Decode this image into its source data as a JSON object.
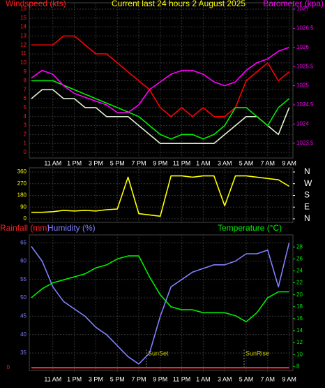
{
  "chart_data": [
    {
      "type": "line",
      "title": "Current last 24 hours 2 August 2025",
      "ylabel": "Windspeed (kts)",
      "y2label": "Barometer (kpa)",
      "categories": [
        null,
        null,
        "11 AM",
        null,
        "1 PM",
        null,
        "3 PM",
        null,
        "5 PM",
        null,
        "7 PM",
        null,
        "9 PM",
        null,
        "11 PM",
        null,
        "1 AM",
        null,
        "3 AM",
        null,
        "5 AM",
        null,
        "7 AM",
        null,
        "9 AM"
      ],
      "ylim": [
        0,
        16
      ],
      "yticks": [
        0,
        1,
        2,
        3,
        4,
        5,
        6,
        7,
        8,
        9,
        10,
        11,
        12,
        13,
        14,
        15,
        16
      ],
      "y2lim": [
        1023.26,
        1027
      ],
      "y2ticks": [
        1023.5,
        1024,
        1024.5,
        1025,
        1025.5,
        1026,
        1026.5,
        1027
      ],
      "ytick_color": "#ff2020",
      "y2tick_color": "#ff00ff",
      "grid": true,
      "series": [
        {
          "color": "#ff0000",
          "values": [
            12,
            12,
            12,
            13,
            13,
            12,
            11,
            11,
            10,
            9,
            8,
            7,
            5,
            4,
            5,
            4,
            5,
            4,
            4,
            5,
            8,
            9,
            10,
            8,
            9
          ]
        },
        {
          "color": "#e0f0d0",
          "values": [
            6,
            7,
            7,
            6,
            6,
            5,
            5,
            4,
            4,
            4,
            3,
            2,
            1,
            1,
            1,
            1,
            1,
            1,
            2,
            3,
            4,
            4,
            3,
            2,
            5
          ]
        },
        {
          "color": "#00ee00",
          "values": [
            8,
            8,
            8,
            7.5,
            7,
            6.5,
            6,
            5.5,
            5,
            4.5,
            4,
            3,
            2,
            1.5,
            2,
            2,
            1.5,
            2,
            3,
            5,
            5,
            4,
            3,
            5,
            6
          ]
        },
        {
          "color": "#ff00ff",
          "axis": "y2",
          "values": [
            1025.2,
            1025.4,
            1025.3,
            1025.0,
            1024.8,
            1024.7,
            1024.6,
            1024.5,
            1024.3,
            1024.3,
            1024.5,
            1024.9,
            1025.1,
            1025.3,
            1025.4,
            1025.4,
            1025.3,
            1025.1,
            1025.0,
            1025.1,
            1025.4,
            1025.6,
            1025.7,
            1025.9,
            1026.0
          ]
        }
      ]
    },
    {
      "type": "line",
      "categories": [
        null,
        null,
        "11 AM",
        null,
        "1 PM",
        null,
        "3 PM",
        null,
        "5 PM",
        null,
        "7 PM",
        null,
        "9 PM",
        null,
        "11 PM",
        null,
        "1 AM",
        null,
        "3 AM",
        null,
        "5 AM",
        null,
        "7 AM",
        null,
        "9 AM"
      ],
      "ylim": [
        0,
        360
      ],
      "yticks": [
        0,
        90,
        180,
        270,
        360
      ],
      "y2lim": [
        0,
        360
      ],
      "y2ticks": [
        {
          "value": 0,
          "label": "N"
        },
        {
          "value": 90,
          "label": "E"
        },
        {
          "value": 180,
          "label": "S"
        },
        {
          "value": 270,
          "label": "W"
        },
        {
          "value": 360,
          "label": "N"
        }
      ],
      "ytick_color": "#ffff00",
      "y2tick_color": "#ffffff",
      "grid": true,
      "series": [
        {
          "color": "#ffff00",
          "values": [
            50,
            50,
            55,
            65,
            60,
            65,
            60,
            70,
            75,
            320,
            40,
            30,
            20,
            330,
            330,
            320,
            330,
            330,
            100,
            330,
            330,
            320,
            310,
            300,
            250
          ]
        }
      ]
    },
    {
      "type": "line",
      "ylabel": "Humidity (%)",
      "y2label": "Temperature (°C)",
      "y3label": "Rainfall (mm)",
      "categories": [
        null,
        null,
        "11 AM",
        null,
        "1 PM",
        null,
        "3 PM",
        null,
        "5 PM",
        null,
        "7 PM",
        null,
        "9 PM",
        null,
        "11 PM",
        null,
        "1 AM",
        null,
        "3 AM",
        null,
        "5 AM",
        null,
        "7 AM",
        null,
        "9 AM"
      ],
      "ylim": [
        31,
        65.8
      ],
      "yticks": [
        35,
        40,
        45,
        50,
        55,
        60,
        65
      ],
      "y2lim": [
        7.8,
        29.2
      ],
      "y2ticks": [
        8,
        10,
        12,
        14,
        16,
        18,
        20,
        22,
        24,
        26,
        28
      ],
      "y3lim": [
        0,
        10
      ],
      "y3ticks": [
        0
      ],
      "ytick_color": "#8080ff",
      "y2tick_color": "#00ee00",
      "y3tick_color": "#ff2020",
      "grid": true,
      "annotations": [
        "SunSet",
        "SunRise"
      ],
      "series": [
        {
          "color": "#ff2020",
          "axis": "y3",
          "values": [
            0,
            0,
            0,
            0,
            0,
            0,
            0,
            0,
            0,
            0,
            0,
            0,
            0,
            0,
            0,
            0,
            0,
            0,
            0,
            0,
            0,
            0,
            0,
            0,
            0
          ]
        },
        {
          "color": "#8080ff",
          "values": [
            64,
            60,
            53,
            49,
            47,
            45,
            42,
            40,
            37,
            34,
            32,
            35,
            45,
            53,
            55,
            57,
            58,
            59,
            59,
            60,
            62,
            62,
            63,
            53,
            65
          ]
        },
        {
          "color": "#00ee00",
          "axis": "y2",
          "values": [
            19.5,
            21,
            22,
            22.5,
            23,
            23.5,
            24.5,
            25,
            26,
            26.5,
            26.5,
            23,
            20,
            18,
            17.5,
            17.5,
            17,
            17,
            17,
            16.5,
            15.5,
            17,
            19.5,
            20.5,
            20.5
          ]
        }
      ]
    }
  ]
}
